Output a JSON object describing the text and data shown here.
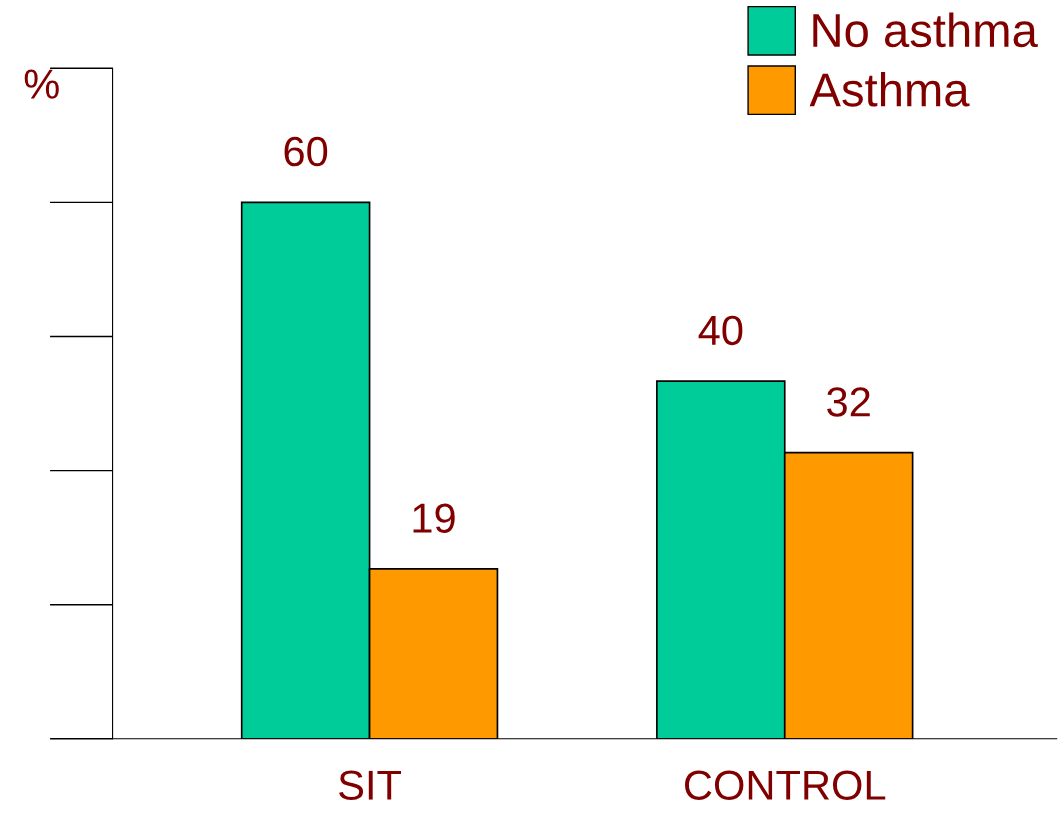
{
  "chart_data": {
    "type": "bar",
    "ylabel": "%",
    "categories": [
      "SIT",
      "CONTROL"
    ],
    "series": [
      {
        "name": "No asthma",
        "color": "#00cc99",
        "values": [
          60,
          40
        ]
      },
      {
        "name": "Asthma",
        "color": "#ff9900",
        "values": [
          19,
          32
        ]
      }
    ],
    "tick_labels": "x",
    "data_labels": true,
    "legend": "top right",
    "grid": false
  }
}
